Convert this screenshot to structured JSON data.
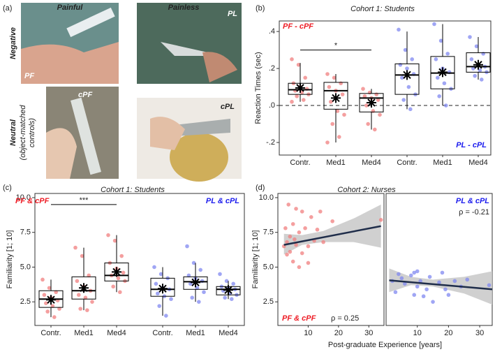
{
  "panel_a": {
    "panel_label": "(a)",
    "col_painful": "Painful",
    "col_painless": "Painless",
    "row_negative": "Negative",
    "row_neutral": "Neutral",
    "row_neutral_note_1": "(object-matched",
    "row_neutral_note_2": "controls)",
    "photo_pf": "PF",
    "photo_pl": "PL",
    "photo_cpf": "cPF",
    "photo_cpl": "cPL"
  },
  "chart_data": [
    {
      "type": "box",
      "panel_label": "(b)",
      "title": "Cohort 1: Students",
      "y_label": "Reaction Times (sec)",
      "categories": [
        "Contr.",
        "Med1",
        "Med4"
      ],
      "ylim": [
        -0.268,
        0.457
      ],
      "yticks": [
        {
          "value": -0.2,
          "label": "-.2"
        },
        {
          "value": 0,
          "label": ".0"
        },
        {
          "value": 0.2,
          "label": ".2"
        },
        {
          "value": 0.4,
          "label": ".4"
        }
      ],
      "reference_line": 0,
      "significance": {
        "label": "*",
        "y": 0.3
      },
      "series": [
        {
          "name": "PF - cPF",
          "color": "#ee1c25",
          "point_color": "#f07f7f",
          "boxes": [
            {
              "whisker_low": 0.02,
              "q1": 0.06,
              "median": 0.085,
              "q3": 0.12,
              "whisker_high": 0.23,
              "mean": 0.095,
              "points": [
                0.25,
                0.22,
                0.15,
                0.12,
                0.1,
                0.09,
                0.08,
                0.07,
                0.06,
                0.05,
                0.03,
                0.02
              ]
            },
            {
              "whisker_low": -0.2,
              "q1": -0.02,
              "median": 0.08,
              "q3": 0.125,
              "whisker_high": 0.17,
              "mean": 0.04,
              "points": [
                0.17,
                0.15,
                0.12,
                0.1,
                0.08,
                0.06,
                0.02,
                -0.03,
                -0.05,
                -0.1,
                -0.17,
                -0.2
              ]
            },
            {
              "whisker_low": -0.13,
              "q1": -0.035,
              "median": 0.04,
              "q3": 0.065,
              "whisker_high": 0.09,
              "mean": 0.015,
              "points": [
                0.09,
                0.07,
                0.06,
                0.05,
                0.04,
                0.03,
                0.0,
                -0.03,
                -0.05,
                -0.1,
                -0.13
              ]
            }
          ]
        },
        {
          "name": "PL - cPL",
          "color": "#1c1cee",
          "point_color": "#8088f0",
          "boxes": [
            {
              "whisker_low": -0.02,
              "q1": 0.06,
              "median": 0.165,
              "q3": 0.225,
              "whisker_high": 0.4,
              "mean": 0.165,
              "points": [
                0.41,
                0.3,
                0.25,
                0.22,
                0.2,
                0.17,
                0.15,
                0.1,
                0.06,
                0.03,
                -0.02
              ]
            },
            {
              "whisker_low": 0.0,
              "q1": 0.09,
              "median": 0.175,
              "q3": 0.265,
              "whisker_high": 0.44,
              "mean": 0.18,
              "points": [
                0.44,
                0.35,
                0.28,
                0.25,
                0.2,
                0.18,
                0.15,
                0.12,
                0.09,
                0.05,
                0.0
              ]
            },
            {
              "whisker_low": 0.14,
              "q1": 0.18,
              "median": 0.21,
              "q3": 0.285,
              "whisker_high": 0.37,
              "mean": 0.22,
              "points": [
                0.37,
                0.32,
                0.28,
                0.25,
                0.22,
                0.21,
                0.2,
                0.19,
                0.18,
                0.16,
                0.14
              ]
            }
          ]
        }
      ]
    },
    {
      "type": "box",
      "panel_label": "(c)",
      "title": "Cohort 1: Students",
      "y_label": "Familiarity [1; 10]",
      "categories": [
        "Contr.",
        "Med1",
        "Med4"
      ],
      "ylim": [
        0.8,
        10.3
      ],
      "yticks": [
        2.5,
        {
          "value": 5,
          "label": "5.0"
        },
        7.5,
        {
          "value": 10,
          "label": "10.0"
        }
      ],
      "significance": {
        "label": "***",
        "y": 9.5
      },
      "series": [
        {
          "name": "PF & cPF",
          "color": "#ee1c25",
          "point_color": "#f07f7f",
          "boxes": [
            {
              "whisker_low": 1.4,
              "q1": 2.1,
              "median": 2.7,
              "q3": 3.3,
              "whisker_high": 4.1,
              "mean": 2.65,
              "points": [
                4.1,
                3.5,
                3.2,
                3.0,
                2.8,
                2.6,
                2.4,
                2.2,
                2.0,
                1.8,
                1.4
              ]
            },
            {
              "whisker_low": 1.9,
              "q1": 2.7,
              "median": 3.3,
              "q3": 4.3,
              "whisker_high": 6.4,
              "mean": 3.5,
              "points": [
                6.4,
                5.8,
                4.4,
                4.0,
                3.6,
                3.3,
                3.0,
                2.8,
                2.5,
                2.0,
                1.9
              ]
            },
            {
              "whisker_low": 3.2,
              "q1": 4.0,
              "median": 4.4,
              "q3": 5.3,
              "whisker_high": 7.3,
              "mean": 4.65,
              "points": [
                7.3,
                6.9,
                5.8,
                5.3,
                4.9,
                4.6,
                4.4,
                4.2,
                4.0,
                3.6,
                3.2
              ]
            }
          ]
        },
        {
          "name": "PL & cPL",
          "color": "#1c1cee",
          "point_color": "#8088f0",
          "boxes": [
            {
              "whisker_low": 1.5,
              "q1": 2.9,
              "median": 3.4,
              "q3": 4.2,
              "whisker_high": 5.0,
              "mean": 3.45,
              "points": [
                5.0,
                4.5,
                4.2,
                3.8,
                3.5,
                3.4,
                3.1,
                2.9,
                2.7,
                2.2,
                1.5
              ]
            },
            {
              "whisker_low": 2.5,
              "q1": 3.4,
              "median": 3.95,
              "q3": 4.3,
              "whisker_high": 5.3,
              "mean": 3.9,
              "points": [
                6.5,
                5.3,
                4.8,
                4.4,
                4.2,
                4.0,
                3.8,
                3.5,
                3.2,
                2.8,
                2.5
              ]
            },
            {
              "whisker_low": 2.7,
              "q1": 3.0,
              "median": 3.4,
              "q3": 3.6,
              "whisker_high": 4.0,
              "mean": 3.35,
              "points": [
                4.5,
                4.0,
                3.8,
                3.6,
                3.5,
                3.4,
                3.3,
                3.1,
                3.0,
                2.8,
                2.7
              ]
            }
          ]
        }
      ]
    },
    {
      "type": "scatter",
      "panel_label": "(d)",
      "title": "Cohort 2: Nurses",
      "x_label": "Post-graduate Experience [years]",
      "y_label": "Familiarity [1; 10]",
      "ylim": [
        0.8,
        10.3
      ],
      "yticks": [
        2.5,
        {
          "value": 5,
          "label": "5.0"
        },
        7.5,
        {
          "value": 10,
          "label": "10.0"
        }
      ],
      "panels": [
        {
          "name": "PF & cPF",
          "annotation": "ρ = 0.25",
          "color": "#ee1c25",
          "point_color": "#f07f7f",
          "xlim": [
            0,
            35
          ],
          "xticks": [
            10,
            20,
            30
          ],
          "x": [
            2,
            2.5,
            3,
            3,
            3.5,
            4,
            4,
            5,
            5,
            5.5,
            6,
            6,
            7,
            7,
            8,
            8,
            9,
            10,
            10,
            11,
            12,
            13,
            14,
            15,
            18,
            34
          ],
          "values": [
            6.5,
            7.8,
            5.9,
            6.8,
            9.5,
            7.2,
            6.1,
            8.1,
            5.4,
            7.0,
            9.2,
            6.6,
            5.0,
            7.5,
            6.0,
            9.0,
            7.8,
            6.5,
            5.3,
            8.6,
            6.9,
            7.7,
            9.0,
            6.8,
            8.3,
            8.4
          ],
          "fit_x": [
            2,
            34
          ],
          "fit_values": [
            6.6,
            7.95
          ],
          "ci_x": [
            2,
            8,
            15,
            25,
            34
          ],
          "ci_lower": [
            5.9,
            6.6,
            6.8,
            6.8,
            6.4
          ],
          "ci_upper": [
            7.4,
            7.3,
            7.6,
            8.5,
            9.5
          ]
        },
        {
          "name": "PL & cPL",
          "annotation": "ρ = -0.21",
          "color": "#1c1cee",
          "point_color": "#8088f0",
          "xlim": [
            0,
            34
          ],
          "xticks": [
            10,
            20,
            30
          ],
          "x": [
            2,
            3,
            4,
            5,
            6,
            8,
            9,
            9,
            10,
            10,
            11,
            12,
            13,
            14,
            15,
            17,
            18,
            19,
            20,
            22,
            24,
            26,
            33
          ],
          "values": [
            4.0,
            3.2,
            4.5,
            4.2,
            3.8,
            4.4,
            4.6,
            3.0,
            3.6,
            4.7,
            4.0,
            2.9,
            3.4,
            4.3,
            2.5,
            3.9,
            4.6,
            3.4,
            3.0,
            4.0,
            3.6,
            4.1,
            3.7
          ],
          "fit_x": [
            1,
            34
          ],
          "fit_values": [
            4.05,
            3.4
          ],
          "ci_x": [
            1,
            8,
            15,
            25,
            34
          ],
          "ci_lower": [
            3.2,
            3.7,
            3.6,
            3.1,
            2.3
          ],
          "ci_upper": [
            4.9,
            4.3,
            4.1,
            4.3,
            4.7
          ]
        }
      ]
    }
  ]
}
